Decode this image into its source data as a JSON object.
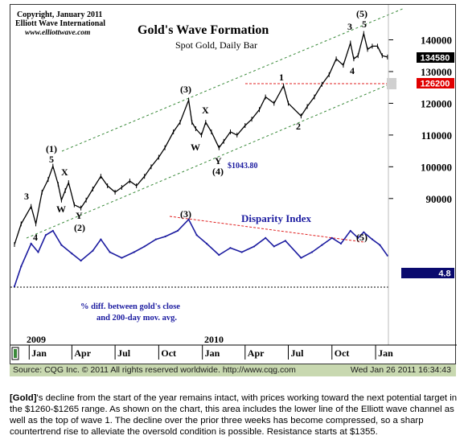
{
  "header": {
    "copyright": "Copyright, January 2011",
    "publisher": "Elliott Wave International",
    "url": "www.elliottwave.com",
    "title": "Gold's Wave Formation",
    "subtitle": "Spot Gold, Daily Bar"
  },
  "footer": {
    "source": "Source: CQG Inc. © 2011 All rights reserved worldwide. http://www.cqg.com",
    "timestamp": "Wed Jan 26 2011 16:34:43"
  },
  "caption": {
    "lead": "[Gold]",
    "text": "'s decline from the start of the year remains intact, with prices working toward the next potential target in the $1260-$1265 range. As shown on the chart, this area includes the lower line of the Elliott wave channel as well as the top of wave 1. The decline over the prior three weeks has become compressed, so a sharp countertrend rise to alleviate the oversold condition is possible. Resistance starts at $1355."
  },
  "colors": {
    "price": "#000000",
    "channel": "#3a8a3a",
    "disparity": "#1c1ca0",
    "resistance": "#e02020",
    "last_price_bg": "#000000",
    "target_bg": "#e00000",
    "disp_value_bg": "#0a0a6e",
    "footer_bg": "#c8d8b0"
  },
  "chart_data": [
    {
      "type": "line",
      "title": "Gold's Wave Formation",
      "subtitle": "Spot Gold, Daily Bar",
      "ylim": [
        75000,
        149000
      ],
      "y_ticks": [
        90000,
        100000,
        110000,
        120000,
        130000,
        140000
      ],
      "y_tick_labels": [
        "90000",
        "100000",
        "110000",
        "120000",
        "130000",
        "140000"
      ],
      "x_ticks": [
        "Jan",
        "Apr",
        "Jul",
        "Oct",
        "Jan",
        "Apr",
        "Jul",
        "Oct",
        "Jan"
      ],
      "year_labels": [
        "2009",
        "2010"
      ],
      "series": [
        {
          "x": [
            "2008-12-01",
            "2008-12-15",
            "2009-01-05",
            "2009-01-15",
            "2009-01-28",
            "2009-02-10",
            "2009-02-20",
            "2009-03-03",
            "2009-03-10",
            "2009-03-18",
            "2009-03-25",
            "2009-04-06",
            "2009-04-20",
            "2009-05-01",
            "2009-05-15",
            "2009-06-01",
            "2009-06-15",
            "2009-07-01",
            "2009-07-15",
            "2009-08-01",
            "2009-08-15",
            "2009-09-01",
            "2009-09-15",
            "2009-10-01",
            "2009-10-14",
            "2009-11-01",
            "2009-11-15",
            "2009-12-03",
            "2009-12-10",
            "2009-12-18",
            "2009-12-30",
            "2010-01-08",
            "2010-01-20",
            "2010-02-05",
            "2010-02-15",
            "2010-03-01",
            "2010-03-15",
            "2010-04-01",
            "2010-04-15",
            "2010-05-01",
            "2010-05-14",
            "2010-06-01",
            "2010-06-21",
            "2010-07-01",
            "2010-07-28",
            "2010-08-10",
            "2010-08-25",
            "2010-09-10",
            "2010-09-25",
            "2010-10-10",
            "2010-10-25",
            "2010-11-09",
            "2010-11-16",
            "2010-11-25",
            "2010-12-07",
            "2010-12-15",
            "2010-12-25",
            "2011-01-05",
            "2011-01-15",
            "2011-01-26"
          ],
          "values": [
            75500,
            82000,
            87500,
            82000,
            92000,
            96000,
            100200,
            94500,
            89500,
            92500,
            95000,
            88000,
            87000,
            89500,
            93000,
            97000,
            94000,
            92000,
            93500,
            95500,
            94000,
            97000,
            100000,
            103000,
            106000,
            111000,
            114000,
            121000,
            114000,
            112000,
            110000,
            114000,
            111000,
            106000,
            108000,
            111000,
            110000,
            113000,
            115000,
            118000,
            122000,
            120000,
            125500,
            120000,
            116000,
            119000,
            122000,
            126000,
            129000,
            134000,
            132000,
            139000,
            134000,
            135000,
            142000,
            137000,
            138000,
            138000,
            135000,
            134580
          ]
        }
      ],
      "annotations": {
        "waves": [
          "3",
          "4",
          "(1)",
          "5",
          "X",
          "W",
          "Y",
          "(2)",
          "(3)",
          "X",
          "W",
          "Y",
          "(4)",
          "$1043.80",
          "1",
          "2",
          "3",
          "5",
          "(5)",
          "4"
        ],
        "last_price": "134580",
        "target": "126200"
      }
    },
    {
      "type": "line",
      "title": "Disparity Index",
      "note": "% diff. between gold's close and 200-day mov. avg.",
      "annotations": [
        "(3)",
        "(5)"
      ],
      "last_value": "4.8",
      "x": [
        "2008-12-01",
        "2008-12-15",
        "2009-01-05",
        "2009-01-20",
        "2009-02-05",
        "2009-02-20",
        "2009-03-10",
        "2009-04-01",
        "2009-04-20",
        "2009-05-15",
        "2009-06-01",
        "2009-06-20",
        "2009-07-15",
        "2009-08-10",
        "2009-09-01",
        "2009-09-25",
        "2009-10-15",
        "2009-11-10",
        "2009-12-03",
        "2009-12-20",
        "2010-01-10",
        "2010-02-05",
        "2010-03-01",
        "2010-03-25",
        "2010-04-20",
        "2010-05-14",
        "2010-06-01",
        "2010-06-25",
        "2010-07-28",
        "2010-08-20",
        "2010-09-10",
        "2010-10-01",
        "2010-10-20",
        "2010-11-09",
        "2010-11-25",
        "2010-12-07",
        "2010-12-25",
        "2011-01-10",
        "2011-01-26"
      ],
      "values": [
        -6.0,
        1.0,
        9.0,
        6.0,
        12.0,
        13.5,
        8.5,
        5.5,
        3.0,
        6.5,
        10.5,
        6.0,
        4.0,
        6.0,
        8.0,
        10.5,
        11.5,
        13.5,
        17.5,
        12.0,
        9.0,
        5.0,
        7.5,
        6.0,
        8.0,
        11.0,
        8.0,
        10.0,
        4.0,
        6.0,
        8.5,
        11.0,
        9.0,
        13.5,
        11.0,
        13.0,
        10.5,
        8.5,
        4.8
      ]
    }
  ]
}
